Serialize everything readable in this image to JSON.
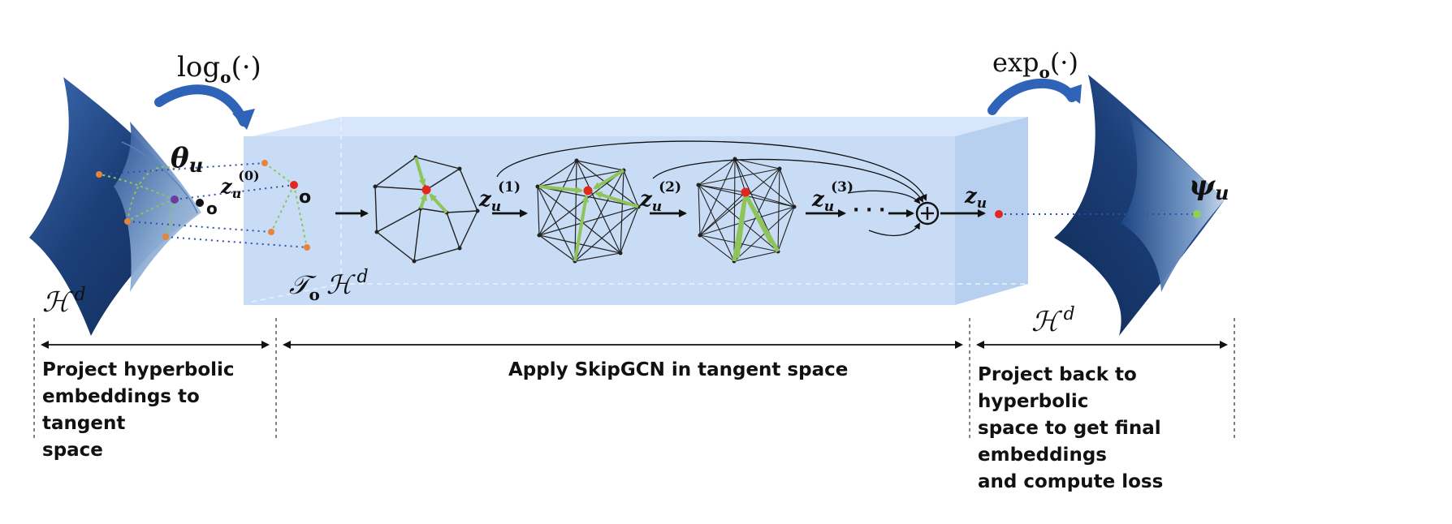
{
  "labels": {
    "log_fn": "log",
    "log_sub": "o",
    "log_arg": "(·)",
    "exp_fn": "exp",
    "exp_sub": "o",
    "exp_arg": "(·)",
    "theta": "θ",
    "theta_sub": "u",
    "psi": "ψ",
    "psi_sub": "u",
    "z": "z",
    "z_sub": "u",
    "z0_sup": "(0)",
    "z1_sup": "(1)",
    "z2_sup": "(2)",
    "z3_sup": "(3)",
    "origin_left": "o",
    "origin_tangent": "o",
    "ellipsis": "· · ·",
    "plus": "+",
    "hyperbolic_space": "ℋ",
    "dim": "d",
    "tangent_T": "𝒯",
    "tangent_sub": "o"
  },
  "captions": {
    "left": "Project hyperbolic\nembeddings to tangent\nspace",
    "middle": "Apply SkipGCN in tangent space",
    "right": "Project back to hyperbolic\nspace to get final embeddings\nand compute loss"
  },
  "colors": {
    "box_front": "#c8dcf6",
    "box_side": "#b8d0f0",
    "box_top": "#d7e6fa",
    "surface_dark": "#1c3f78",
    "surface_light": "#9cb7d8",
    "arrow_blue": "#2f63b8",
    "accent_green": "#8fc45a",
    "node_red": "#e0281f",
    "node_orange": "#e8833a",
    "node_purple": "#6a3d9a",
    "node_green": "#8fd14f",
    "dotted_blue": "#2f4fa8"
  },
  "icons": [
    "curved-arrow-icon",
    "plus-circle-icon"
  ]
}
